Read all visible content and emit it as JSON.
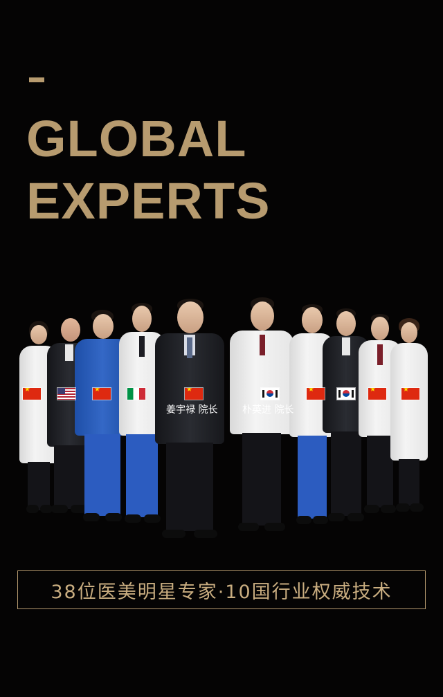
{
  "headline": {
    "line1": "GLOBAL",
    "line2": "EXPERTS"
  },
  "colors": {
    "background": "#050404",
    "accent": "#b79b6f"
  },
  "experts": [
    {
      "attire": "white-coat",
      "flag": "china-flag-icon"
    },
    {
      "attire": "suit",
      "flag": "usa-flag-icon"
    },
    {
      "attire": "scrubs",
      "flag": "china-flag-icon"
    },
    {
      "attire": "white-coat",
      "flag": "italy-flag-icon"
    },
    {
      "attire": "suit",
      "flag": "china-flag-icon",
      "name_label": "姜宇禄 院长"
    },
    {
      "attire": "white-coat",
      "flag": "korea-flag-icon",
      "name_label": "朴英进 院长"
    },
    {
      "attire": "white-coat",
      "flag": "china-flag-icon"
    },
    {
      "attire": "suit",
      "flag": "korea-flag-icon"
    },
    {
      "attire": "white-coat",
      "flag": "china-flag-icon"
    },
    {
      "attire": "white-coat",
      "flag": "china-flag-icon"
    }
  ],
  "banner": {
    "text": "38位医美明星专家·10国行业权威技术"
  }
}
